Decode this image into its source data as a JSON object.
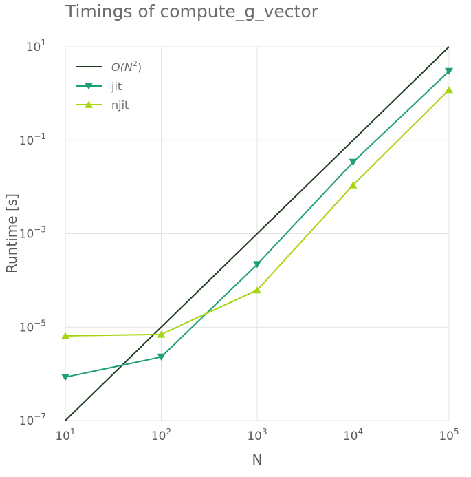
{
  "chart_data": {
    "type": "line",
    "title": "Timings of compute_g_vector",
    "xlabel": "N",
    "ylabel": "Runtime [s]",
    "xscale": "log",
    "yscale": "log",
    "xlim": [
      10,
      100000
    ],
    "ylim": [
      1e-07,
      10
    ],
    "grid": true,
    "legend_position": "top-left",
    "x_ticks": [
      {
        "value": 10,
        "base": "10",
        "exp": "1"
      },
      {
        "value": 100,
        "base": "10",
        "exp": "2"
      },
      {
        "value": 1000,
        "base": "10",
        "exp": "3"
      },
      {
        "value": 10000,
        "base": "10",
        "exp": "4"
      },
      {
        "value": 100000,
        "base": "10",
        "exp": "5"
      }
    ],
    "y_ticks": [
      {
        "value": 1e-07,
        "base": "10",
        "exp": "−7"
      },
      {
        "value": 1e-05,
        "base": "10",
        "exp": "−5"
      },
      {
        "value": 0.001,
        "base": "10",
        "exp": "−3"
      },
      {
        "value": 0.1,
        "base": "10",
        "exp": "−1"
      },
      {
        "value": 10,
        "base": "10",
        "exp": "1"
      }
    ],
    "series": [
      {
        "name": "O(N²)",
        "legend_main": "O(N",
        "legend_sup": "2",
        "legend_close": ")",
        "color": "#1f3a1f",
        "marker": "none",
        "x": [
          10,
          100000
        ],
        "y": [
          1e-07,
          10
        ]
      },
      {
        "name": "jit",
        "color": "#1e9e73",
        "marker": "triangle-down",
        "x": [
          10,
          100,
          1000,
          10000,
          100000
        ],
        "y": [
          8.5e-07,
          2.3e-06,
          0.00022,
          0.034,
          3.0
        ]
      },
      {
        "name": "njit",
        "color": "#a6d411",
        "marker": "triangle-up",
        "x": [
          10,
          100,
          1000,
          10000,
          100000
        ],
        "y": [
          6.5e-06,
          7e-06,
          6.2e-05,
          0.011,
          1.2
        ]
      }
    ]
  }
}
